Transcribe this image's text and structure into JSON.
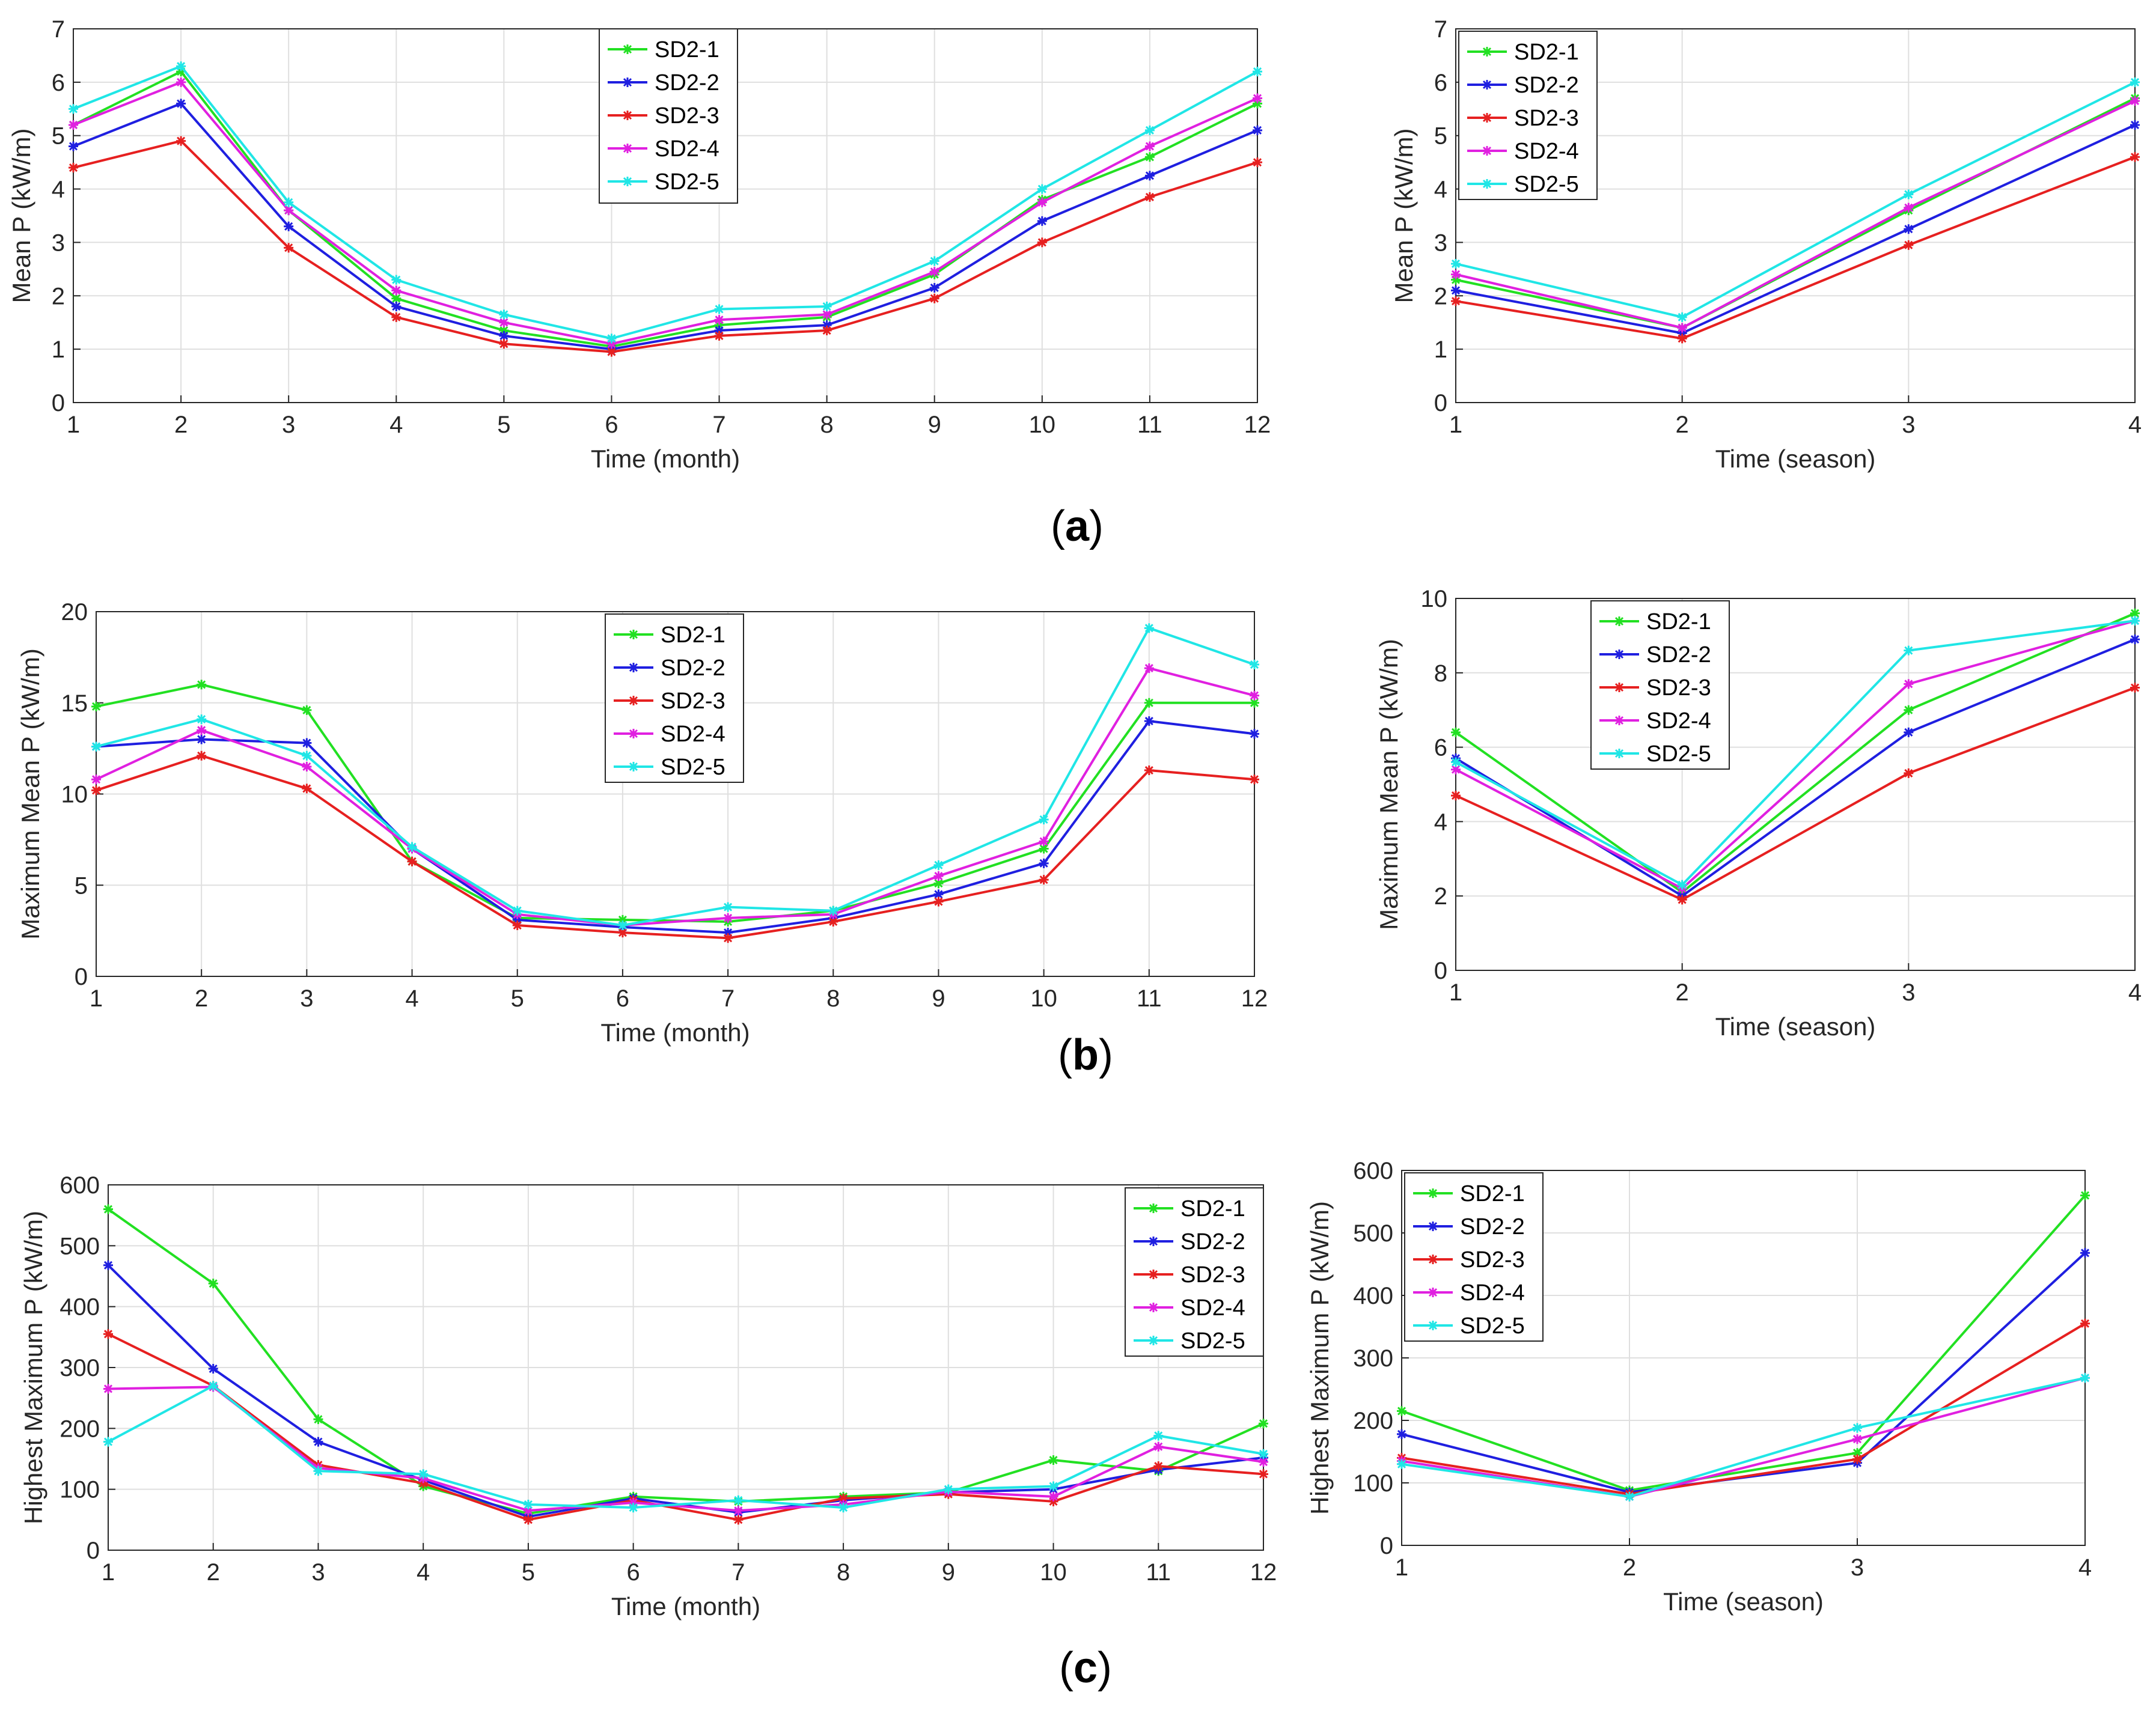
{
  "figure": {
    "panel_labels": [
      {
        "open": "(",
        "letter": "a",
        "close": ")"
      },
      {
        "open": "(",
        "letter": "b",
        "close": ")"
      },
      {
        "open": "(",
        "letter": "c",
        "close": ")"
      }
    ]
  },
  "colors": {
    "SD2-1": "#22e022",
    "SD2-2": "#1f1fe0",
    "SD2-3": "#e62020",
    "SD2-4": "#e020e0",
    "SD2-5": "#20e6e6"
  },
  "chart_data": [
    {
      "id": "a-month",
      "type": "line",
      "title": "",
      "xlabel": "Time (month)",
      "ylabel": "Mean P (kW/m)",
      "x": [
        1,
        2,
        3,
        4,
        5,
        6,
        7,
        8,
        9,
        10,
        11,
        12
      ],
      "xlim": [
        1,
        12
      ],
      "ylim": [
        0,
        7
      ],
      "xticks": [
        1,
        2,
        3,
        4,
        5,
        6,
        7,
        8,
        9,
        10,
        11,
        12
      ],
      "yticks": [
        0,
        1,
        2,
        3,
        4,
        5,
        6,
        7
      ],
      "grid": true,
      "legend": "top-center",
      "series": [
        {
          "name": "SD2-1",
          "values": [
            5.2,
            6.2,
            3.6,
            1.95,
            1.35,
            1.05,
            1.45,
            1.6,
            2.4,
            3.8,
            4.6,
            5.6
          ]
        },
        {
          "name": "SD2-2",
          "values": [
            4.8,
            5.6,
            3.3,
            1.8,
            1.25,
            1.0,
            1.35,
            1.45,
            2.15,
            3.4,
            4.25,
            5.1
          ]
        },
        {
          "name": "SD2-3",
          "values": [
            4.4,
            4.9,
            2.9,
            1.6,
            1.1,
            0.95,
            1.25,
            1.35,
            1.95,
            3.0,
            3.85,
            4.5
          ]
        },
        {
          "name": "SD2-4",
          "values": [
            5.2,
            6.0,
            3.6,
            2.1,
            1.5,
            1.1,
            1.55,
            1.65,
            2.45,
            3.75,
            4.8,
            5.7
          ]
        },
        {
          "name": "SD2-5",
          "values": [
            5.5,
            6.3,
            3.75,
            2.3,
            1.65,
            1.2,
            1.75,
            1.8,
            2.65,
            4.0,
            5.1,
            6.2
          ]
        }
      ]
    },
    {
      "id": "a-season",
      "type": "line",
      "title": "",
      "xlabel": "Time (season)",
      "ylabel": "Mean P (kW/m)",
      "x": [
        1,
        2,
        3,
        4
      ],
      "xlim": [
        1,
        4
      ],
      "ylim": [
        0,
        7
      ],
      "xticks": [
        1,
        2,
        3,
        4
      ],
      "yticks": [
        0,
        1,
        2,
        3,
        4,
        5,
        6,
        7
      ],
      "grid": true,
      "legend": "top-left",
      "series": [
        {
          "name": "SD2-1",
          "values": [
            2.3,
            1.4,
            3.6,
            5.7
          ]
        },
        {
          "name": "SD2-2",
          "values": [
            2.1,
            1.3,
            3.25,
            5.2
          ]
        },
        {
          "name": "SD2-3",
          "values": [
            1.9,
            1.2,
            2.95,
            4.6
          ]
        },
        {
          "name": "SD2-4",
          "values": [
            2.4,
            1.4,
            3.65,
            5.65
          ]
        },
        {
          "name": "SD2-5",
          "values": [
            2.6,
            1.6,
            3.9,
            6.0
          ]
        }
      ]
    },
    {
      "id": "b-month",
      "type": "line",
      "title": "",
      "xlabel": "Time (month)",
      "ylabel": "Maximum Mean P (kW/m)",
      "x": [
        1,
        2,
        3,
        4,
        5,
        6,
        7,
        8,
        9,
        10,
        11,
        12
      ],
      "xlim": [
        1,
        12
      ],
      "ylim": [
        0,
        20
      ],
      "xticks": [
        1,
        2,
        3,
        4,
        5,
        6,
        7,
        8,
        9,
        10,
        11,
        12
      ],
      "yticks": [
        0,
        5,
        10,
        15,
        20
      ],
      "grid": true,
      "legend": "top-center",
      "series": [
        {
          "name": "SD2-1",
          "values": [
            14.8,
            16.0,
            14.6,
            6.3,
            3.2,
            3.1,
            3.0,
            3.6,
            5.1,
            7.0,
            15.0,
            15.0
          ]
        },
        {
          "name": "SD2-2",
          "values": [
            12.6,
            13.0,
            12.8,
            7.0,
            3.1,
            2.7,
            2.4,
            3.2,
            4.5,
            6.2,
            14.0,
            13.3
          ]
        },
        {
          "name": "SD2-3",
          "values": [
            10.2,
            12.1,
            10.3,
            6.3,
            2.8,
            2.4,
            2.1,
            3.0,
            4.1,
            5.3,
            11.3,
            10.8
          ]
        },
        {
          "name": "SD2-4",
          "values": [
            10.8,
            13.5,
            11.5,
            7.0,
            3.4,
            2.8,
            3.2,
            3.4,
            5.5,
            7.4,
            16.9,
            15.4
          ]
        },
        {
          "name": "SD2-5",
          "values": [
            12.6,
            14.1,
            12.1,
            7.1,
            3.6,
            2.8,
            3.8,
            3.6,
            6.1,
            8.6,
            19.1,
            17.1
          ]
        }
      ]
    },
    {
      "id": "b-season",
      "type": "line",
      "title": "",
      "xlabel": "Time (season)",
      "ylabel": "Maximum Mean P (kW/m)",
      "x": [
        1,
        2,
        3,
        4
      ],
      "xlim": [
        1,
        4
      ],
      "ylim": [
        0,
        10
      ],
      "xticks": [
        1,
        2,
        3,
        4
      ],
      "yticks": [
        0,
        2,
        4,
        6,
        8,
        10
      ],
      "grid": true,
      "legend": "top-left",
      "series": [
        {
          "name": "SD2-1",
          "values": [
            6.4,
            2.1,
            7.0,
            9.6
          ]
        },
        {
          "name": "SD2-2",
          "values": [
            5.7,
            2.0,
            6.4,
            8.9
          ]
        },
        {
          "name": "SD2-3",
          "values": [
            4.7,
            1.9,
            5.3,
            7.6
          ]
        },
        {
          "name": "SD2-4",
          "values": [
            5.4,
            2.2,
            7.7,
            9.4
          ]
        },
        {
          "name": "SD2-5",
          "values": [
            5.6,
            2.3,
            8.6,
            9.4
          ]
        }
      ]
    },
    {
      "id": "c-month",
      "type": "line",
      "title": "",
      "xlabel": "Time (month)",
      "ylabel": "Highest Maximum P (kW/m)",
      "x": [
        1,
        2,
        3,
        4,
        5,
        6,
        7,
        8,
        9,
        10,
        11,
        12
      ],
      "xlim": [
        1,
        12
      ],
      "ylim": [
        0,
        600
      ],
      "xticks": [
        1,
        2,
        3,
        4,
        5,
        6,
        7,
        8,
        9,
        10,
        11,
        12
      ],
      "yticks": [
        0,
        100,
        200,
        300,
        400,
        500,
        600
      ],
      "grid": true,
      "legend": "top-right",
      "series": [
        {
          "name": "SD2-1",
          "values": [
            560,
            438,
            215,
            105,
            60,
            88,
            80,
            88,
            95,
            148,
            130,
            208
          ]
        },
        {
          "name": "SD2-2",
          "values": [
            468,
            298,
            178,
            115,
            55,
            85,
            62,
            82,
            95,
            100,
            132,
            152
          ]
        },
        {
          "name": "SD2-3",
          "values": [
            355,
            270,
            140,
            110,
            50,
            82,
            50,
            85,
            92,
            80,
            138,
            125
          ]
        },
        {
          "name": "SD2-4",
          "values": [
            265,
            268,
            135,
            118,
            65,
            78,
            65,
            75,
            96,
            88,
            170,
            145
          ]
        },
        {
          "name": "SD2-5",
          "values": [
            178,
            270,
            130,
            125,
            75,
            70,
            82,
            70,
            100,
            105,
            188,
            158
          ]
        }
      ]
    },
    {
      "id": "c-season",
      "type": "line",
      "title": "",
      "xlabel": "Time (season)",
      "ylabel": "Highest Maximum P (kW/m)",
      "x": [
        1,
        2,
        3,
        4
      ],
      "xlim": [
        1,
        4
      ],
      "ylim": [
        0,
        600
      ],
      "xticks": [
        1,
        2,
        3,
        4
      ],
      "yticks": [
        0,
        100,
        200,
        300,
        400,
        500,
        600
      ],
      "grid": true,
      "legend": "top-left",
      "series": [
        {
          "name": "SD2-1",
          "values": [
            215,
            88,
            148,
            560
          ]
        },
        {
          "name": "SD2-2",
          "values": [
            178,
            85,
            132,
            468
          ]
        },
        {
          "name": "SD2-3",
          "values": [
            140,
            82,
            138,
            355
          ]
        },
        {
          "name": "SD2-4",
          "values": [
            135,
            78,
            170,
            268
          ]
        },
        {
          "name": "SD2-5",
          "values": [
            130,
            78,
            188,
            268
          ]
        }
      ]
    }
  ]
}
